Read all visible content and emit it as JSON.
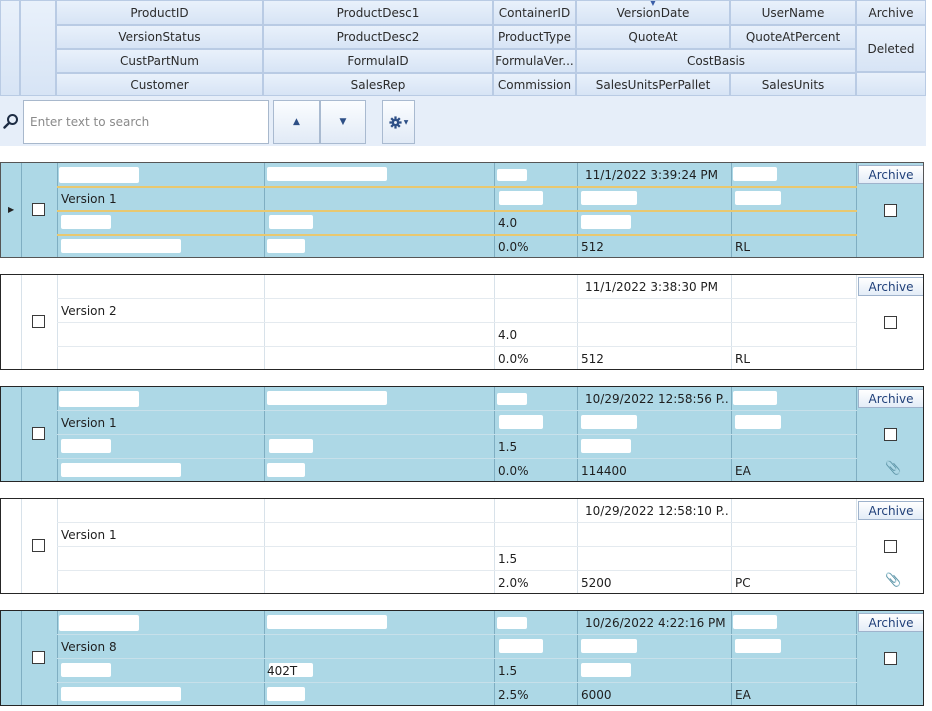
{
  "columns": {
    "row1": [
      "ProductID",
      "ProductDesc1",
      "ContainerID",
      "VersionDate",
      "UserName",
      "Archive"
    ],
    "row2": [
      "VersionStatus",
      "ProductDesc2",
      "ProductType",
      "QuoteAt",
      "QuoteAtPercent",
      "Deleted"
    ],
    "row3": [
      "CustPartNum",
      "FormulaID",
      "FormulaVer...",
      "CostBasis"
    ],
    "row4": [
      "Customer",
      "SalesRep",
      "Commission",
      "SalesUnitsPerPallet",
      "SalesUnits"
    ]
  },
  "sorted_column": "VersionDate",
  "toolbar": {
    "search_placeholder": "Enter text to search",
    "prev_icon": "triangle-up-icon",
    "next_icon": "triangle-down-icon",
    "settings_icon": "gear-icon"
  },
  "colors": {
    "row_blue": "#add8e6",
    "row_white": "#ffffff",
    "header": "#dbe7f6",
    "selection": "#e8c870"
  },
  "records": [
    {
      "style": "blue",
      "selected": true,
      "version_date": "11/1/2022 3:39:24 PM",
      "version_status": "Version 1",
      "formula_ver": "4.0",
      "commission": "0.0%",
      "sales_units_per_pallet": "512",
      "sales_units": "RL",
      "product_desc2": "",
      "formula_id": "",
      "archive_label": "Archive",
      "attachment": false
    },
    {
      "style": "white",
      "selected": false,
      "version_date": "11/1/2022 3:38:30 PM",
      "version_status": "Version 2",
      "formula_ver": "4.0",
      "commission": "0.0%",
      "sales_units_per_pallet": "512",
      "sales_units": "RL",
      "product_desc2": "",
      "formula_id": "",
      "archive_label": "Archive",
      "attachment": false
    },
    {
      "style": "blue",
      "selected": false,
      "version_date": "10/29/2022 12:58:56 P...",
      "version_status": "Version 1",
      "formula_ver": "1.5",
      "commission": "0.0%",
      "sales_units_per_pallet": "114400",
      "sales_units": "EA",
      "product_desc2": "",
      "formula_id": "",
      "archive_label": "Archive",
      "attachment": true
    },
    {
      "style": "white",
      "selected": false,
      "version_date": "10/29/2022 12:58:10 P...",
      "version_status": "Version 1",
      "formula_ver": "1.5",
      "commission": "2.0%",
      "sales_units_per_pallet": "5200",
      "sales_units": "PC",
      "product_desc2": "",
      "formula_id": "",
      "archive_label": "Archive",
      "attachment": true
    },
    {
      "style": "blue",
      "selected": false,
      "version_date": "10/26/2022 4:22:16 PM",
      "version_status": "Version 8",
      "formula_ver": "1.5",
      "commission": "2.5%",
      "sales_units_per_pallet": "6000",
      "sales_units": "EA",
      "product_desc2": "",
      "formula_id": "402T",
      "archive_label": "Archive",
      "attachment": false
    }
  ]
}
